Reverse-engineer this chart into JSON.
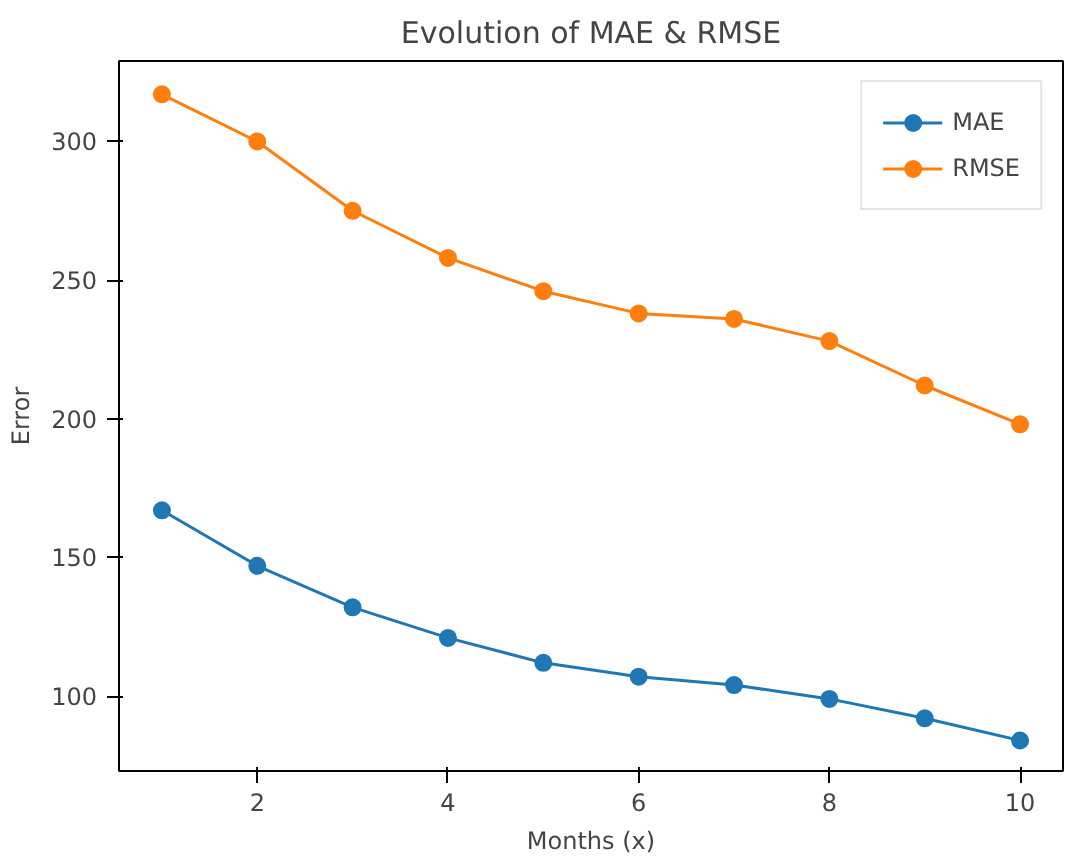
{
  "chart_data": {
    "type": "line",
    "title": "Evolution of MAE & RMSE",
    "xlabel": "Months (x)",
    "ylabel": "Error",
    "x": [
      1,
      2,
      3,
      4,
      5,
      6,
      7,
      8,
      9,
      10
    ],
    "series": [
      {
        "name": "MAE",
        "color": "#1f77b4",
        "values": [
          167,
          147,
          132,
          121,
          112,
          107,
          104,
          99,
          92,
          84
        ]
      },
      {
        "name": "RMSE",
        "color": "#ff7f0e",
        "values": [
          317,
          300,
          275,
          258,
          246,
          238,
          236,
          228,
          212,
          198
        ]
      }
    ],
    "xlim": [
      0.55,
      10.45
    ],
    "ylim": [
      73,
      329
    ],
    "xticks": [
      2,
      4,
      6,
      8,
      10
    ],
    "yticks": [
      100,
      150,
      200,
      250,
      300
    ],
    "grid": false,
    "legend": "top right",
    "marker": "circle",
    "line_style": "solid"
  }
}
